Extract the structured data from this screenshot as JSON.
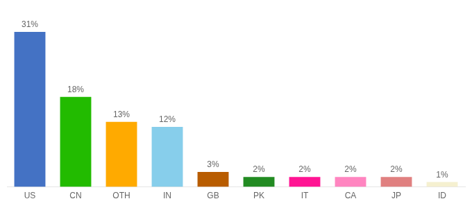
{
  "chart_data": {
    "type": "bar",
    "categories": [
      "US",
      "CN",
      "OTH",
      "IN",
      "GB",
      "PK",
      "IT",
      "CA",
      "JP",
      "ID"
    ],
    "values": [
      31,
      18,
      13,
      12,
      3,
      2,
      2,
      2,
      2,
      1
    ],
    "value_labels": [
      "31%",
      "18%",
      "13%",
      "12%",
      "3%",
      "2%",
      "2%",
      "2%",
      "2%",
      "1%"
    ],
    "data_labels": true,
    "colors": [
      "#4472c4",
      "#22bb00",
      "#ffaa00",
      "#87ceeb",
      "#b85c00",
      "#228b22",
      "#ff1493",
      "#ff85c0",
      "#e08080",
      "#f5f0d0"
    ],
    "ylim": [
      0,
      36
    ],
    "tick_labels": "x",
    "grid": false
  }
}
